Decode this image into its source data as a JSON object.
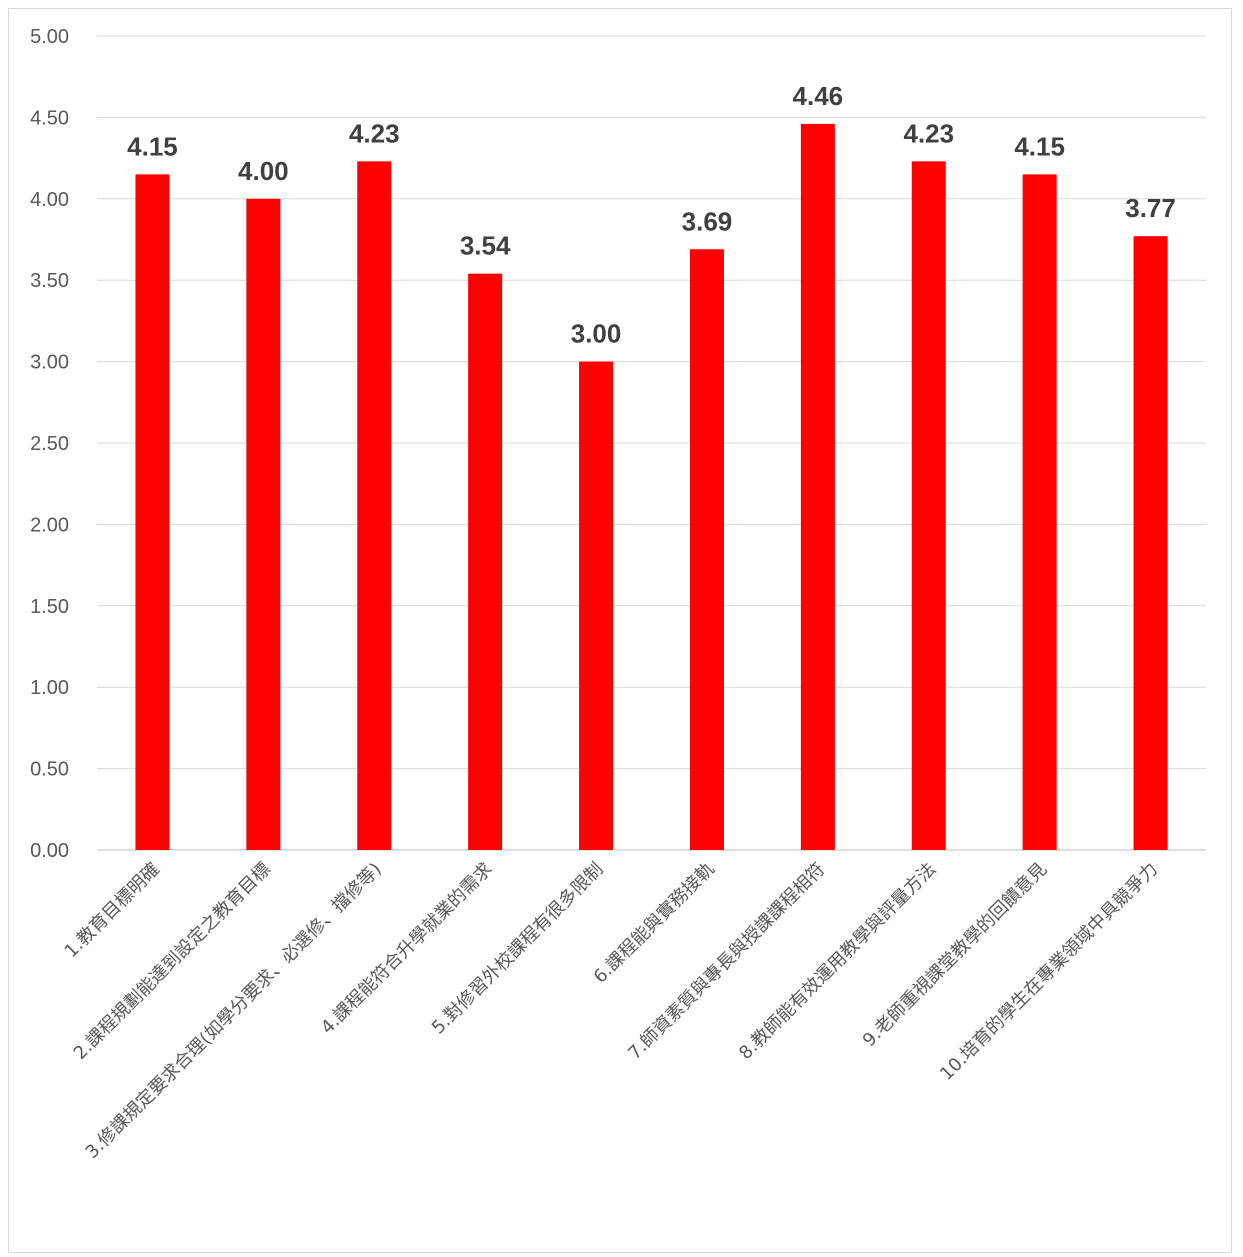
{
  "chart_data": {
    "type": "bar",
    "title": "",
    "xlabel": "",
    "ylabel": "",
    "ylim": [
      0,
      5
    ],
    "yticks": [
      "0.00",
      "0.50",
      "1.00",
      "1.50",
      "2.00",
      "2.50",
      "3.00",
      "3.50",
      "4.00",
      "4.50",
      "5.00"
    ],
    "grid": true,
    "legend": "none",
    "bar_color": "#ff0000",
    "categories": [
      "1.教育目標明確",
      "2.課程規劃能達到設定之教育目標",
      "3.修課規定要求合理(如學分要求、必選修、擋修等)",
      "4.課程能符合升學就業的需求",
      "5.對修習外校課程有很多限制",
      "6.課程能與實務接軌",
      "7.師資素質與專長與授課課程相符",
      "8.教師能有效運用教學與評量方法",
      "9.老師重視課堂教學的回饋意見",
      "10.培育的學生在專業領域中具競爭力"
    ],
    "values": [
      4.15,
      4.0,
      4.23,
      3.54,
      3.0,
      3.69,
      4.46,
      4.23,
      4.15,
      3.77
    ],
    "data_labels": [
      "4.15",
      "4.00",
      "4.23",
      "3.54",
      "3.00",
      "3.69",
      "4.46",
      "4.23",
      "4.15",
      "3.77"
    ]
  }
}
